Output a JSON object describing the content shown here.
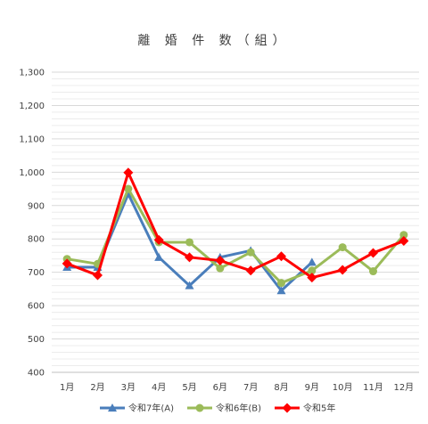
{
  "chart_data": {
    "type": "line",
    "title": "離 婚 件 数（組）",
    "xlabel": "",
    "ylabel": "",
    "categories": [
      "1月",
      "2月",
      "3月",
      "4月",
      "5月",
      "6月",
      "7月",
      "8月",
      "9月",
      "10月",
      "11月",
      "12月"
    ],
    "ylim": [
      400,
      1300
    ],
    "yticks": [
      400,
      500,
      600,
      700,
      800,
      900,
      1000,
      1100,
      1200,
      1300
    ],
    "ytick_labels": [
      "400",
      "500",
      "600",
      "700",
      "800",
      "900",
      "1,000",
      "1,100",
      "1,200",
      "1,300"
    ],
    "grid": true,
    "legend_position": "bottom",
    "series": [
      {
        "name": "令和7年(A)",
        "color": "#4a7ebb",
        "marker": "triangle",
        "values": [
          715,
          715,
          935,
          745,
          660,
          745,
          765,
          645,
          730,
          null,
          null,
          null
        ]
      },
      {
        "name": "令和6年(B)",
        "color": "#9bbb59",
        "marker": "circle",
        "values": [
          740,
          725,
          950,
          790,
          790,
          712,
          760,
          668,
          705,
          775,
          703,
          812
        ]
      },
      {
        "name": "令和5年",
        "color": "#ff0000",
        "marker": "diamond",
        "values": [
          726,
          691,
          999,
          797,
          745,
          735,
          705,
          748,
          684,
          707,
          758,
          794
        ]
      }
    ]
  }
}
